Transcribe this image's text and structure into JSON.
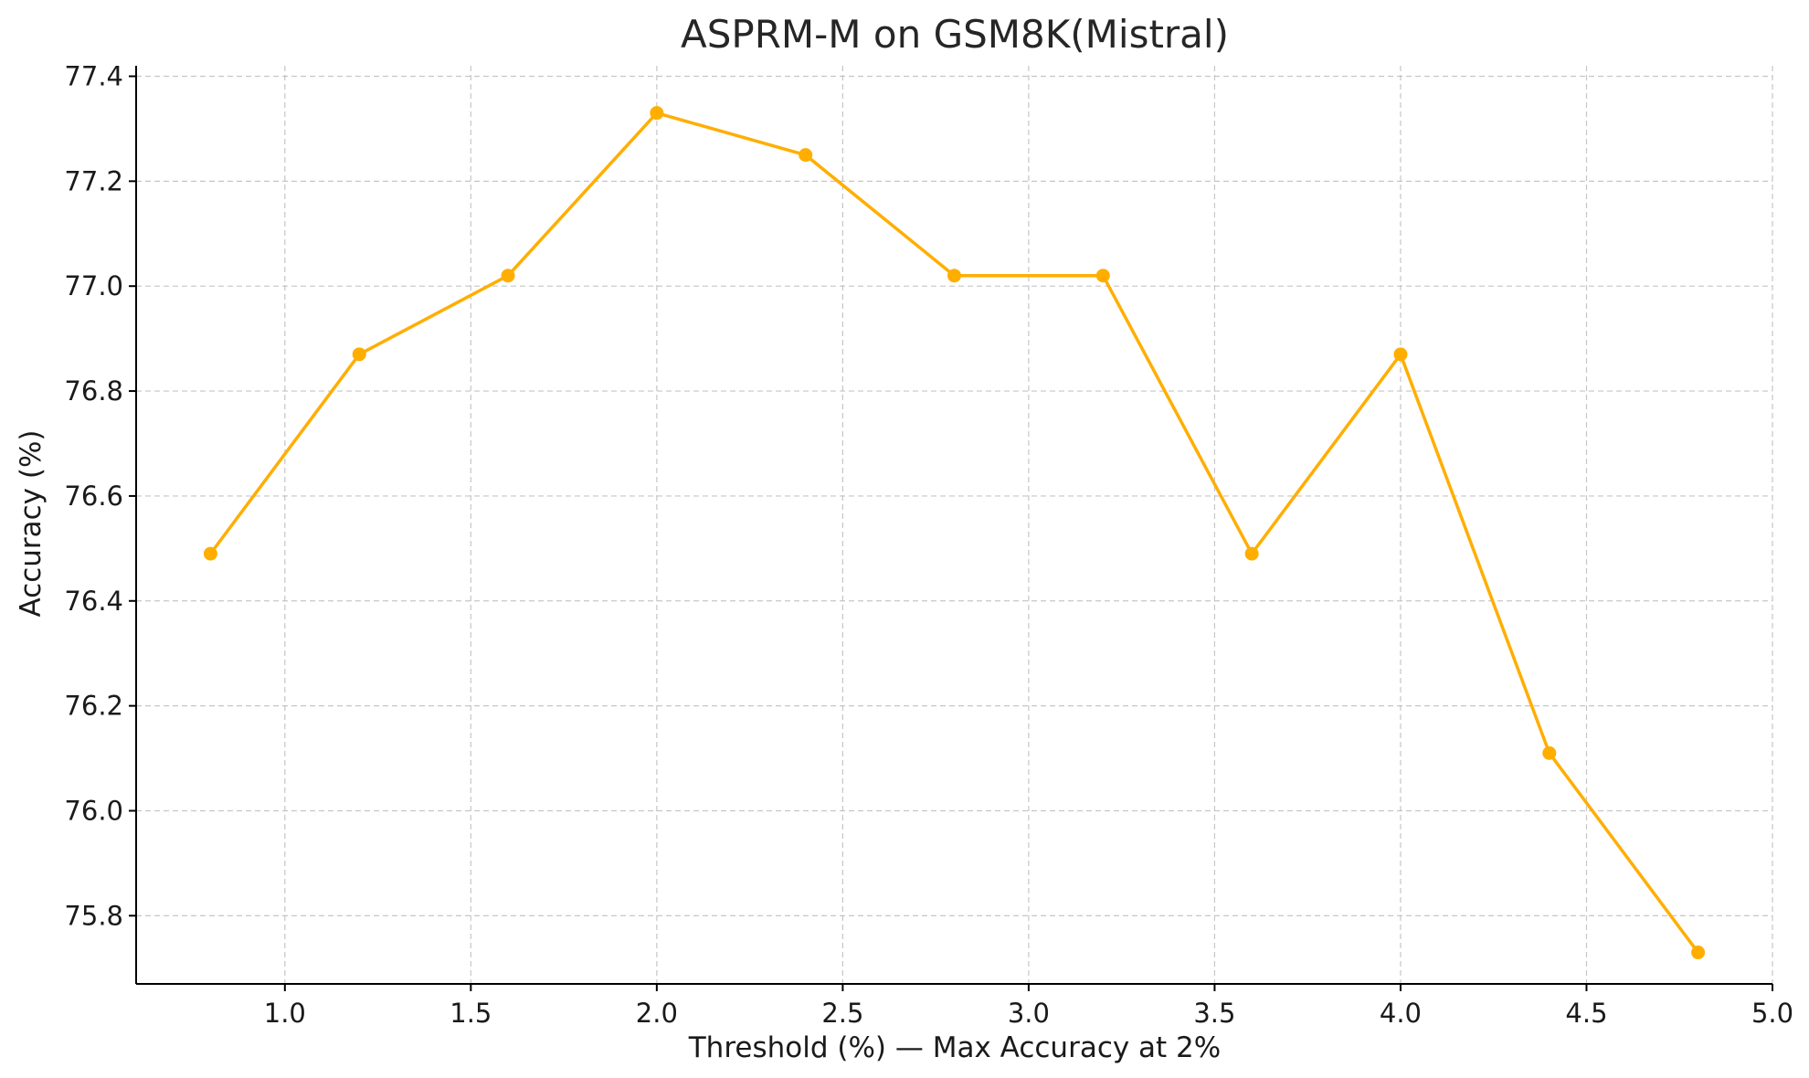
{
  "chart_data": {
    "type": "line",
    "title": "ASPRM-M on GSM8K(Mistral)",
    "xlabel": "Threshold (%) — Max Accuracy at 2%",
    "ylabel": "Accuracy (%)",
    "xlim": [
      0.6,
      5.0
    ],
    "ylim": [
      75.67,
      77.42
    ],
    "xticks": [
      1.0,
      1.5,
      2.0,
      2.5,
      3.0,
      3.5,
      4.0,
      4.5,
      5.0
    ],
    "xtick_labels": [
      "1.0",
      "1.5",
      "2.0",
      "2.5",
      "3.0",
      "3.5",
      "4.0",
      "4.5",
      "5.0"
    ],
    "yticks": [
      75.8,
      76.0,
      76.2,
      76.4,
      76.6,
      76.8,
      77.0,
      77.2,
      77.4
    ],
    "ytick_labels": [
      "75.8",
      "76.0",
      "76.2",
      "76.4",
      "76.6",
      "76.8",
      "77.0",
      "77.2",
      "77.4"
    ],
    "grid": true,
    "series": [
      {
        "color": "#FFAE00",
        "marker": "circle",
        "x": [
          0.8,
          1.2,
          1.6,
          2.0,
          2.4,
          2.8,
          3.2,
          3.6,
          4.0,
          4.4,
          4.8
        ],
        "y": [
          76.49,
          76.87,
          77.02,
          77.33,
          77.25,
          77.02,
          77.02,
          76.49,
          76.87,
          76.11,
          75.73
        ]
      }
    ]
  }
}
